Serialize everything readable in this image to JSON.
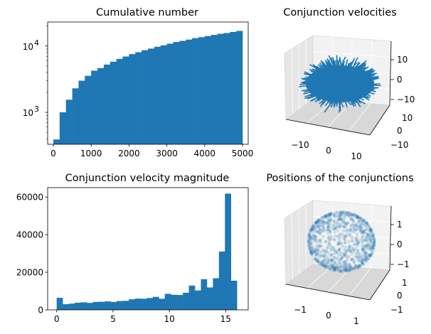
{
  "colors": {
    "bar": "#1f77b4",
    "pane_light": "#f2f2f2",
    "pane_mid": "#e6e6e6",
    "pane_dark": "#d8d8d8",
    "grid": "#ffffff"
  },
  "chart_data": [
    {
      "type": "bar",
      "title": "Cumulative number",
      "yscale": "log",
      "xlim": [
        -150,
        5150
      ],
      "ylim": [
        330,
        23000
      ],
      "bin_width": 166.67,
      "x_ticks": [
        {
          "v": 0,
          "label": "0"
        },
        {
          "v": 1000,
          "label": "1000"
        },
        {
          "v": 2000,
          "label": "2000"
        },
        {
          "v": 3000,
          "label": "3000"
        },
        {
          "v": 4000,
          "label": "4000"
        },
        {
          "v": 5000,
          "label": "5000"
        }
      ],
      "y_ticks": [
        {
          "v": 1000,
          "base": "10",
          "exp": "3"
        },
        {
          "v": 10000,
          "base": "10",
          "exp": "4"
        }
      ],
      "bin_starts": [
        0,
        166.67,
        333.33,
        500,
        666.67,
        833.33,
        1000,
        1166.67,
        1333.33,
        1500,
        1666.67,
        1833.33,
        2000,
        2166.67,
        2333.33,
        2500,
        2666.67,
        2833.33,
        3000,
        3166.67,
        3333.33,
        3500,
        3666.67,
        3833.33,
        4000,
        4166.67,
        4333.33,
        4500,
        4666.67,
        4833.33
      ],
      "values": [
        390,
        1000,
        1550,
        2300,
        3000,
        3550,
        4250,
        4650,
        5250,
        5800,
        6400,
        6950,
        7550,
        8050,
        8650,
        9150,
        9750,
        10250,
        10850,
        11500,
        11950,
        12500,
        13150,
        13600,
        14150,
        14700,
        15300,
        15700,
        16300,
        16900
      ]
    },
    {
      "type": "scatter3d",
      "title": "Conjunction velocities",
      "x_ticks": [
        "−10",
        "0",
        "10"
      ],
      "y_ticks": [
        "10",
        "0",
        "−10"
      ],
      "z_ticks": [
        "10",
        "0",
        "−10"
      ]
    },
    {
      "type": "bar",
      "title": "Conjunction velocity magnitude",
      "xlim": [
        -0.8,
        17.0
      ],
      "ylim": [
        0,
        65000
      ],
      "bin_width": 0.5333,
      "x_ticks": [
        {
          "v": 0,
          "label": "0"
        },
        {
          "v": 5,
          "label": "5"
        },
        {
          "v": 10,
          "label": "10"
        },
        {
          "v": 15,
          "label": "15"
        }
      ],
      "y_ticks": [
        {
          "v": 0,
          "label": "0"
        },
        {
          "v": 20000,
          "label": "20000"
        },
        {
          "v": 40000,
          "label": "40000"
        },
        {
          "v": 60000,
          "label": "60000"
        }
      ],
      "bin_starts": [
        0,
        0.5333,
        1.0667,
        1.6,
        2.1333,
        2.6667,
        3.2,
        3.7333,
        4.2667,
        4.8,
        5.3333,
        5.8667,
        6.4,
        6.9333,
        7.4667,
        8.0,
        8.5333,
        9.0667,
        9.6,
        10.1333,
        10.6667,
        11.2,
        11.7333,
        12.2667,
        12.8,
        13.3333,
        13.8667,
        14.4,
        14.9333,
        15.4667
      ],
      "values": [
        6400,
        3000,
        3300,
        3800,
        4000,
        3700,
        4200,
        4300,
        4500,
        4200,
        4700,
        4800,
        5600,
        6000,
        5900,
        6300,
        6900,
        5900,
        8500,
        8000,
        7900,
        9100,
        12900,
        10300,
        16300,
        11900,
        16800,
        31000,
        61800,
        15500
      ]
    },
    {
      "type": "scatter3d",
      "title": "Positions of the conjunctions",
      "x_ticks": [
        "−1",
        "0",
        "1"
      ],
      "y_ticks": [
        "1",
        "0",
        "−1"
      ],
      "z_ticks": [
        "1",
        "0",
        "−1"
      ]
    }
  ]
}
